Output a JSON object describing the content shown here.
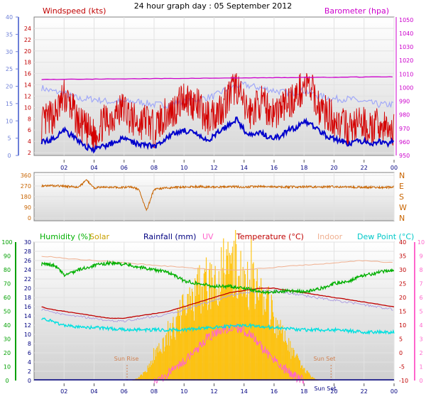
{
  "title": "24 hour graph day : 05 September 2012",
  "colors": {
    "windspeed": "#d40000",
    "wind_average": "#0000cc",
    "wind_secondary": "#a0a8f8",
    "barometer": "#cc00cc",
    "direction": "#c86400",
    "humidity": "#00b000",
    "solar": "#ffc000",
    "rainfall": "#000080",
    "uv": "#ff66cc",
    "temperature": "#c00000",
    "indoor": "#f0b090",
    "dewpoint": "#00e0e0",
    "axis_blue": "#6d7fd8"
  },
  "chart_data": [
    {
      "type": "line",
      "panel": "wind-barometer",
      "left_label": "Windspeed (kts)",
      "right_label": "Barometer (hpa)",
      "x_ticks": [
        "02",
        "04",
        "06",
        "08",
        "10",
        "12",
        "14",
        "16",
        "18",
        "20",
        "22",
        "00"
      ],
      "left_outer_ticks": [
        0,
        5,
        10,
        15,
        20,
        25,
        30,
        35,
        40
      ],
      "left_inner_ticks": [
        2,
        4,
        6,
        8,
        10,
        12,
        14,
        16,
        18,
        20,
        22,
        24
      ],
      "right_ticks": [
        950,
        960,
        970,
        980,
        990,
        1000,
        1010,
        1020,
        1030,
        1040,
        1050
      ],
      "left_outer_range": [
        0,
        40
      ],
      "left_inner_range": [
        2,
        25
      ],
      "right_range": [
        950,
        1052
      ],
      "series": [
        {
          "key": "gust",
          "x": [
            0.5,
            1,
            1.5,
            2,
            2.5,
            3,
            3.5,
            4,
            4.5,
            5,
            5.5,
            6,
            6.5,
            7,
            7.5,
            8,
            8.5,
            9,
            9.5,
            10,
            10.5,
            11,
            11.5,
            12,
            12.5,
            13,
            13.5,
            14,
            14.5,
            15,
            15.5,
            16,
            16.5,
            17,
            17.5,
            18,
            18.5,
            19,
            19.5,
            20,
            20.5,
            21,
            21.5,
            22,
            22.5,
            23,
            23.5,
            24
          ],
          "values": [
            7,
            8,
            9,
            12,
            10,
            7,
            6,
            5,
            7,
            8,
            9,
            10,
            8,
            7,
            8,
            6,
            8,
            9,
            10,
            12,
            11,
            10,
            8,
            9,
            10,
            12,
            14,
            10,
            9,
            11,
            10,
            9,
            10,
            11,
            12,
            14,
            13,
            10,
            9,
            8,
            7,
            6,
            7,
            7,
            6,
            7,
            6,
            6
          ]
        },
        {
          "key": "average",
          "x": [
            0.5,
            1,
            1.5,
            2,
            2.5,
            3,
            3.5,
            4,
            4.5,
            5,
            5.5,
            6,
            6.5,
            7,
            7.5,
            8,
            8.5,
            9,
            9.5,
            10,
            10.5,
            11,
            11.5,
            12,
            12.5,
            13,
            13.5,
            14,
            14.5,
            15,
            15.5,
            16,
            16.5,
            17,
            17.5,
            18,
            18.5,
            19,
            19.5,
            20,
            20.5,
            21,
            21.5,
            22,
            22.5,
            23,
            23.5,
            24
          ],
          "values": [
            4,
            4,
            5,
            6,
            5,
            4,
            3,
            2.5,
            3,
            3.5,
            4,
            4.5,
            4,
            3.5,
            3.5,
            3,
            4,
            5,
            5.5,
            6,
            5.5,
            5,
            4,
            5,
            6,
            7,
            8,
            6,
            5,
            5.5,
            5,
            4.5,
            5,
            6,
            6.5,
            7.5,
            7,
            6,
            5,
            4.5,
            4,
            3.5,
            4,
            4,
            3.5,
            4,
            3.5,
            4
          ]
        },
        {
          "key": "secondary",
          "x": [
            0.5,
            1,
            2,
            3,
            4,
            5,
            6,
            7,
            8,
            9,
            10,
            11,
            12,
            13,
            14,
            15,
            16,
            17,
            18,
            19,
            20,
            21,
            22,
            23,
            24
          ],
          "values": [
            13.5,
            13,
            12.5,
            11.5,
            11.5,
            11,
            11,
            11,
            10.5,
            10.5,
            11,
            11.5,
            12,
            13.5,
            14,
            13.5,
            13,
            12.5,
            13,
            12,
            11.5,
            11.5,
            11,
            10.5,
            10.5
          ]
        },
        {
          "key": "barometer",
          "x": [
            0.5,
            24
          ],
          "values": [
            1006,
            1008
          ]
        }
      ]
    },
    {
      "type": "line",
      "panel": "wind-direction",
      "left_ticks": [
        0,
        90,
        180,
        270,
        360
      ],
      "right_ticks": [
        "N",
        "W",
        "S",
        "E",
        "N"
      ],
      "range": [
        0,
        360
      ],
      "series": [
        {
          "key": "direction",
          "x": [
            0.5,
            1,
            2,
            3,
            3.5,
            4,
            5,
            6,
            6.5,
            7,
            7.5,
            8,
            9,
            10,
            11,
            12,
            13,
            14,
            15,
            16,
            17,
            18,
            19,
            20,
            21,
            22,
            23,
            24
          ],
          "values": [
            270,
            275,
            268,
            262,
            320,
            255,
            260,
            258,
            262,
            240,
            60,
            245,
            255,
            262,
            265,
            260,
            264,
            262,
            266,
            263,
            262,
            264,
            262,
            265,
            262,
            260,
            258,
            262
          ]
        }
      ]
    },
    {
      "type": "line",
      "panel": "temperature-humidity",
      "labels": [
        "Humidity (%)",
        "Solar",
        "Rainfall (mm)",
        "UV",
        "Temperature (°C)",
        "Indoor",
        "Dew Point (°C)"
      ],
      "left_outer_ticks": [
        0,
        10,
        20,
        30,
        40,
        50,
        60,
        70,
        80,
        90,
        100
      ],
      "left_inner_ticks": [
        0,
        2,
        4,
        6,
        8,
        10,
        12,
        14,
        16,
        18,
        20,
        22,
        24,
        26,
        28,
        30
      ],
      "right_inner_ticks": [
        -10,
        -5,
        0,
        5,
        10,
        15,
        20,
        25,
        30,
        35,
        40
      ],
      "right_outer_ticks": [
        0,
        1,
        2,
        3,
        4,
        5,
        6,
        7,
        8,
        9,
        10
      ],
      "annotations": [
        "Sun Rise",
        "Sun Set",
        "Sun Set"
      ],
      "series": [
        {
          "key": "humidity",
          "x": [
            0.5,
            1,
            1.5,
            2,
            2.5,
            3,
            4,
            5,
            6,
            7,
            8,
            9,
            10,
            11,
            12,
            13,
            14,
            15,
            16,
            17,
            18,
            19,
            20,
            21,
            22,
            23,
            24
          ],
          "values": [
            84,
            84,
            82,
            76,
            78,
            80,
            83,
            85,
            84,
            82,
            80,
            78,
            72,
            70,
            68,
            68,
            67,
            64,
            64,
            65,
            64,
            66,
            70,
            72,
            76,
            78,
            80
          ]
        },
        {
          "key": "temperature",
          "x": [
            0.5,
            1,
            2,
            3,
            4,
            5,
            6,
            7,
            8,
            9,
            10,
            11,
            12,
            13,
            14,
            15,
            16,
            17,
            18,
            19,
            20,
            21,
            22,
            23,
            24
          ],
          "values": [
            16,
            15.5,
            15,
            14.5,
            14,
            13.5,
            13.5,
            14,
            14.5,
            15,
            16,
            17,
            18,
            19,
            19.5,
            20,
            20,
            19.5,
            19,
            18.5,
            18,
            17.5,
            17,
            16.5,
            16
          ]
        },
        {
          "key": "indoor",
          "x": [
            0.5,
            2,
            4,
            6,
            8,
            10,
            12,
            14,
            16,
            18,
            20,
            22,
            24
          ],
          "values": [
            27,
            26.5,
            26,
            25.5,
            25,
            24.5,
            24,
            24,
            24.5,
            25,
            25.5,
            26,
            25.5
          ]
        },
        {
          "key": "dewpoint",
          "x": [
            0.5,
            1,
            2,
            3,
            4,
            6,
            8,
            10,
            12,
            14,
            16,
            18,
            20,
            22,
            24
          ],
          "values": [
            13.5,
            13,
            12,
            11.5,
            11.5,
            11,
            11,
            11,
            11.5,
            12,
            11.5,
            11,
            11,
            10.5,
            10.5
          ]
        },
        {
          "key": "solar",
          "x": [
            6.5,
            7,
            7.5,
            8,
            8.5,
            9,
            9.5,
            10,
            10.5,
            11,
            11.5,
            12,
            12.5,
            13,
            13.5,
            14,
            14.5,
            15,
            15.5,
            16,
            16.5,
            17,
            17.5,
            18,
            18.5,
            19
          ],
          "values": [
            0,
            0.3,
            1.0,
            2.5,
            3.5,
            4.5,
            5.5,
            6.5,
            7.5,
            8.5,
            9.0,
            9.5,
            10.0,
            10.5,
            10.0,
            9.5,
            9.0,
            8.0,
            7.0,
            6.0,
            4.5,
            3.0,
            2.0,
            1.0,
            0.3,
            0
          ]
        },
        {
          "key": "uv",
          "x": [
            8,
            8.5,
            9,
            9.5,
            10,
            10.5,
            11,
            11.5,
            12,
            12.5,
            13,
            13.5,
            14,
            14.5,
            15,
            15.5,
            16,
            16.5,
            17,
            17.5,
            18
          ],
          "values": [
            -10,
            -9,
            -7,
            -5,
            -3,
            0,
            2,
            5,
            7,
            8,
            9,
            9,
            8,
            6,
            3,
            0,
            -2,
            -5,
            -7,
            -9,
            -10
          ]
        }
      ]
    }
  ]
}
